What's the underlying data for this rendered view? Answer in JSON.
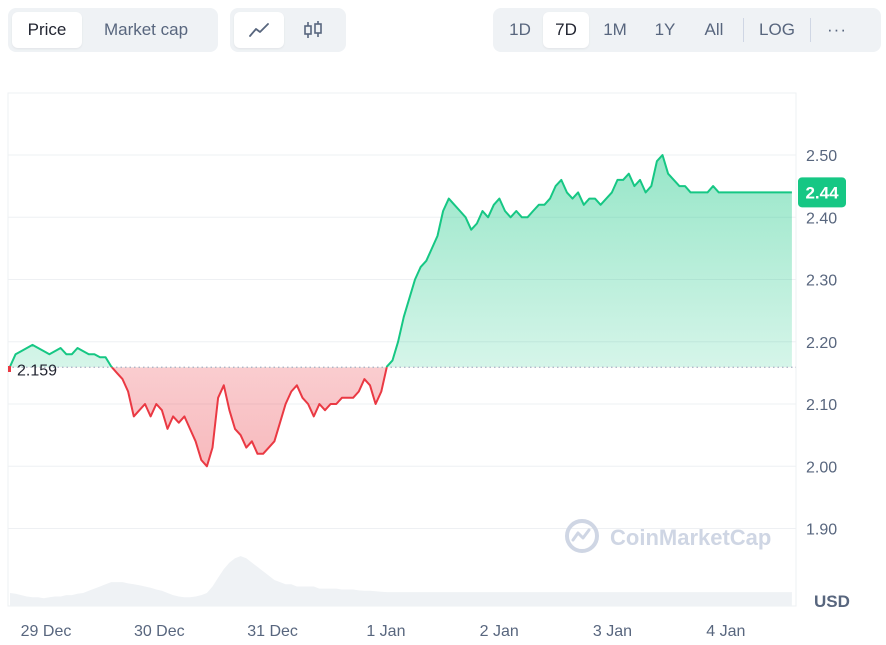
{
  "toolbar": {
    "metric_tabs": [
      {
        "label": "Price",
        "active": true
      },
      {
        "label": "Market cap",
        "active": false
      }
    ],
    "chart_style_icons": [
      "line-chart-icon",
      "candlestick-icon"
    ],
    "range_tabs": [
      {
        "label": "1D",
        "active": false
      },
      {
        "label": "7D",
        "active": true
      },
      {
        "label": "1M",
        "active": false
      },
      {
        "label": "1Y",
        "active": false
      },
      {
        "label": "All",
        "active": false
      }
    ],
    "log_label": "LOG",
    "more_label": "···"
  },
  "watermark": "CoinMarketCap",
  "colors": {
    "up": "#16c784",
    "down": "#ea3943",
    "grid": "#eef0f3",
    "volume": "#eff2f5"
  },
  "chart_data": {
    "type": "area",
    "x_tick_labels": [
      "29 Dec",
      "30 Dec",
      "31 Dec",
      "1 Jan",
      "2 Jan",
      "3 Jan",
      "4 Jan"
    ],
    "y_ticks": [
      "1.90",
      "2.00",
      "2.10",
      "2.20",
      "2.30",
      "2.40",
      "2.50"
    ],
    "ylim": [
      1.84,
      2.56
    ],
    "currency_label": "USD",
    "baseline": 2.159,
    "baseline_label": "2.159",
    "current_price": 2.44,
    "current_price_label": "2.44",
    "x_days": [
      0.0,
      0.05,
      0.1,
      0.15,
      0.2,
      0.25,
      0.3,
      0.35,
      0.4,
      0.45,
      0.5,
      0.55,
      0.6,
      0.65,
      0.7,
      0.75,
      0.8,
      0.85,
      0.9,
      0.95,
      1.0,
      1.05,
      1.1,
      1.15,
      1.2,
      1.25,
      1.3,
      1.35,
      1.4,
      1.45,
      1.5,
      1.55,
      1.6,
      1.65,
      1.7,
      1.75,
      1.8,
      1.85,
      1.9,
      1.95,
      2.0,
      2.05,
      2.1,
      2.15,
      2.2,
      2.25,
      2.3,
      2.35,
      2.4,
      2.45,
      2.5,
      2.55,
      2.6,
      2.65,
      2.7,
      2.75,
      2.8,
      2.85,
      2.9,
      2.95,
      3.0,
      3.05,
      3.1,
      3.15,
      3.2,
      3.25,
      3.3,
      3.35,
      3.4,
      3.45,
      3.5,
      3.55,
      3.6,
      3.65,
      3.7,
      3.75,
      3.8,
      3.85,
      3.9,
      3.95,
      4.0,
      4.05,
      4.1,
      4.15,
      4.2,
      4.25,
      4.3,
      4.35,
      4.4,
      4.45,
      4.5,
      4.55,
      4.6,
      4.65,
      4.7,
      4.75,
      4.8,
      4.85,
      4.9,
      4.95,
      5.0,
      5.05,
      5.1,
      5.15,
      5.2,
      5.25,
      5.3,
      5.35,
      5.4,
      5.45,
      5.5,
      5.55,
      5.6,
      5.65,
      5.7,
      5.75,
      5.8,
      5.85,
      5.9,
      5.95,
      6.0,
      6.05,
      6.1,
      6.15,
      6.2,
      6.25,
      6.3,
      6.35,
      6.4,
      6.45,
      6.5,
      6.55,
      6.6,
      6.65,
      6.7,
      6.75,
      6.8,
      6.85,
      6.9,
      6.95
    ],
    "price": [
      2.16,
      2.18,
      2.185,
      2.19,
      2.195,
      2.19,
      2.185,
      2.18,
      2.185,
      2.19,
      2.18,
      2.18,
      2.19,
      2.185,
      2.18,
      2.18,
      2.175,
      2.175,
      2.16,
      2.15,
      2.14,
      2.12,
      2.08,
      2.09,
      2.1,
      2.08,
      2.1,
      2.09,
      2.06,
      2.08,
      2.07,
      2.08,
      2.06,
      2.04,
      2.01,
      2.0,
      2.03,
      2.11,
      2.13,
      2.09,
      2.06,
      2.05,
      2.03,
      2.04,
      2.02,
      2.02,
      2.03,
      2.04,
      2.07,
      2.1,
      2.12,
      2.13,
      2.11,
      2.1,
      2.08,
      2.1,
      2.09,
      2.1,
      2.1,
      2.11,
      2.11,
      2.11,
      2.12,
      2.14,
      2.13,
      2.1,
      2.12,
      2.16,
      2.17,
      2.2,
      2.24,
      2.27,
      2.3,
      2.32,
      2.33,
      2.35,
      2.37,
      2.41,
      2.43,
      2.42,
      2.41,
      2.4,
      2.38,
      2.39,
      2.41,
      2.4,
      2.42,
      2.43,
      2.41,
      2.4,
      2.41,
      2.4,
      2.4,
      2.41,
      2.42,
      2.42,
      2.43,
      2.45,
      2.46,
      2.44,
      2.43,
      2.44,
      2.42,
      2.43,
      2.43,
      2.42,
      2.43,
      2.44,
      2.46,
      2.46,
      2.47,
      2.45,
      2.46,
      2.44,
      2.45,
      2.49,
      2.5,
      2.47,
      2.46,
      2.45,
      2.45,
      2.44,
      2.44,
      2.44,
      2.44,
      2.45,
      2.44,
      2.44,
      2.44,
      2.44,
      2.44,
      2.44,
      2.44,
      2.44,
      2.44,
      2.44,
      2.44,
      2.44,
      2.44,
      2.44
    ],
    "volume_relative": [
      0.3,
      0.28,
      0.25,
      0.22,
      0.2,
      0.2,
      0.18,
      0.2,
      0.22,
      0.22,
      0.25,
      0.25,
      0.28,
      0.3,
      0.35,
      0.4,
      0.45,
      0.5,
      0.55,
      0.55,
      0.55,
      0.52,
      0.5,
      0.48,
      0.45,
      0.42,
      0.38,
      0.35,
      0.3,
      0.25,
      0.22,
      0.2,
      0.2,
      0.22,
      0.25,
      0.3,
      0.45,
      0.65,
      0.85,
      1.0,
      1.1,
      1.15,
      1.1,
      1.0,
      0.9,
      0.8,
      0.7,
      0.6,
      0.55,
      0.5,
      0.5,
      0.45,
      0.45,
      0.45,
      0.45,
      0.4,
      0.4,
      0.4,
      0.4,
      0.38,
      0.38,
      0.38,
      0.36,
      0.35,
      0.35,
      0.34,
      0.33,
      0.32,
      0.32,
      0.32,
      0.32,
      0.32,
      0.32,
      0.32,
      0.32,
      0.32,
      0.32,
      0.32,
      0.32,
      0.32,
      0.32,
      0.32,
      0.32,
      0.32,
      0.32,
      0.32,
      0.32,
      0.32,
      0.32,
      0.32,
      0.32,
      0.32,
      0.32,
      0.32,
      0.32,
      0.32,
      0.32,
      0.32,
      0.32,
      0.32,
      0.32,
      0.32,
      0.32,
      0.32,
      0.32,
      0.32,
      0.32,
      0.32,
      0.32,
      0.32,
      0.32,
      0.32,
      0.32,
      0.32,
      0.32,
      0.32,
      0.32,
      0.32,
      0.32,
      0.32,
      0.32,
      0.32,
      0.32,
      0.32,
      0.32,
      0.32,
      0.32,
      0.32,
      0.32,
      0.32,
      0.32,
      0.32,
      0.32,
      0.32,
      0.32,
      0.32,
      0.32,
      0.32,
      0.32,
      0.32
    ]
  }
}
